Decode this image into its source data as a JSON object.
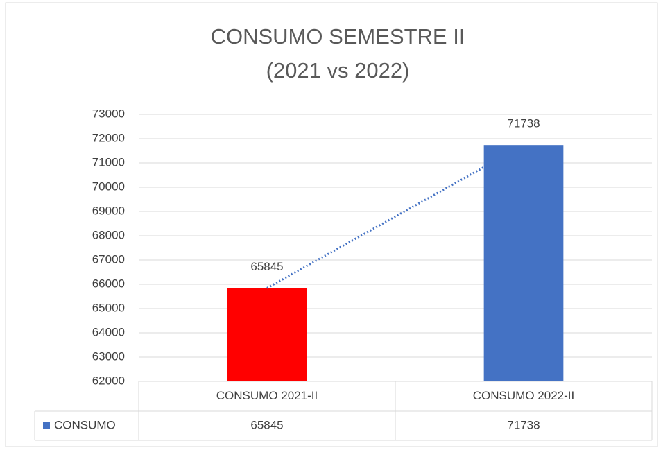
{
  "chart_data": {
    "type": "bar",
    "title": [
      "CONSUMO SEMESTRE II",
      "(2021 vs 2022)"
    ],
    "categories": [
      "CONSUMO 2021-II",
      "CONSUMO 2022-II"
    ],
    "series": [
      {
        "name": "CONSUMO",
        "color": "#4472c4",
        "point_colors": [
          "#ff0000",
          "#4472c4"
        ],
        "values": [
          65845,
          71738
        ]
      }
    ],
    "ylim": [
      62000,
      73000
    ],
    "yticks": [
      62000,
      63000,
      64000,
      65000,
      66000,
      67000,
      68000,
      69000,
      70000,
      71000,
      72000,
      73000
    ],
    "grid": true,
    "data_labels": true,
    "data_table": true,
    "trendline": "linear"
  }
}
